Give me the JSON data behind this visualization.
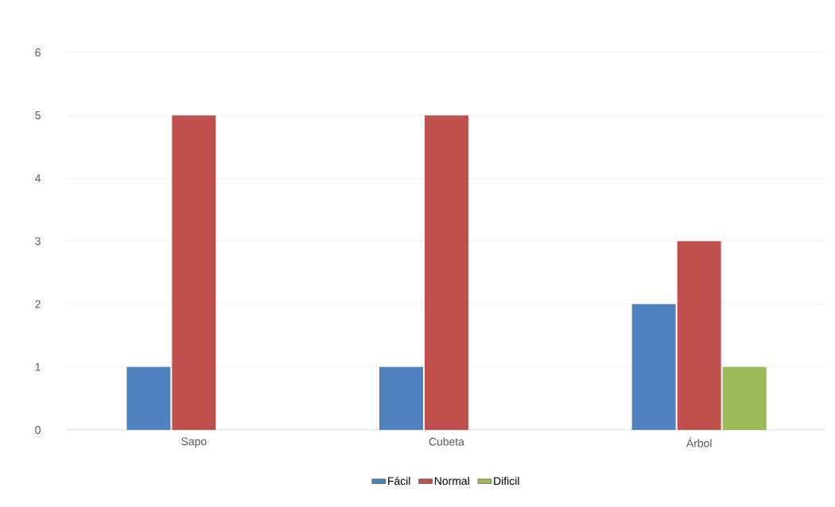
{
  "chart_data": {
    "type": "bar",
    "categories": [
      "Sapo",
      "Cubeta",
      "Árbol"
    ],
    "series": [
      {
        "name": "Fácil",
        "color": "#4f81bd",
        "values": [
          1,
          1,
          2
        ]
      },
      {
        "name": "Normal",
        "color": "#c0504d",
        "values": [
          5,
          5,
          3
        ]
      },
      {
        "name": "Dificil",
        "color": "#9bbb59",
        "values": [
          null,
          null,
          1
        ]
      }
    ],
    "ylim": [
      0,
      6
    ],
    "yticks": [
      0,
      1,
      2,
      3,
      4,
      5,
      6
    ],
    "grid": "y",
    "legend": "bottom"
  }
}
